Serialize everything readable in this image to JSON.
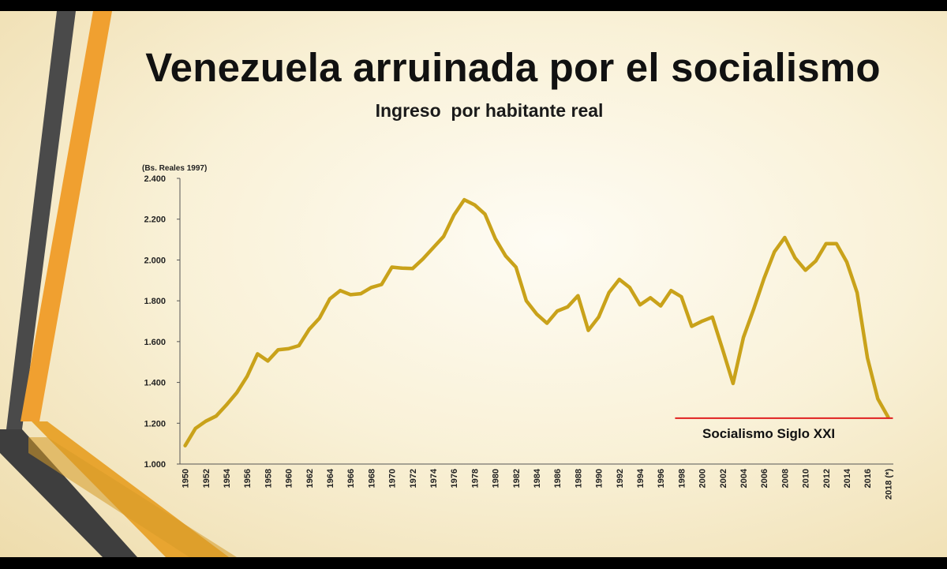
{
  "slide": {
    "title": "Venezuela arruinada por el socialismo",
    "subtitle": "Ingreso  por habitante real"
  },
  "colors": {
    "line": "#c9a21a",
    "annotation_line": "#e02020",
    "stripe_dark": "#4a4a4a",
    "stripe_orange": "#f0a030"
  },
  "chart_data": {
    "type": "line",
    "ylabel": "(Bs. Reales 1997)",
    "ylim": [
      1000,
      2400
    ],
    "yticks": [
      "1.000",
      "1.200",
      "1.400",
      "1.600",
      "1.800",
      "2.000",
      "2.200",
      "2.400"
    ],
    "xticks": [
      "1950",
      "1952",
      "1954",
      "1956",
      "1958",
      "1960",
      "1962",
      "1964",
      "1966",
      "1968",
      "1970",
      "1972",
      "1974",
      "1976",
      "1978",
      "1980",
      "1982",
      "1984",
      "1986",
      "1988",
      "1990",
      "1992",
      "1994",
      "1996",
      "1998",
      "2000",
      "2002",
      "2004",
      "2006",
      "2008",
      "2010",
      "2012",
      "2014",
      "2016",
      "2018 (*)"
    ],
    "grid": false,
    "legend": "none",
    "series": [
      {
        "x": [
          1950,
          1951,
          1952,
          1953,
          1954,
          1955,
          1956,
          1957,
          1958,
          1959,
          1960,
          1961,
          1962,
          1963,
          1964,
          1965,
          1966,
          1967,
          1968,
          1969,
          1970,
          1971,
          1972,
          1973,
          1974,
          1975,
          1976,
          1977,
          1978,
          1979,
          1980,
          1981,
          1982,
          1983,
          1984,
          1985,
          1986,
          1987,
          1988,
          1989,
          1990,
          1991,
          1992,
          1993,
          1994,
          1995,
          1996,
          1997,
          1998,
          1999,
          2000,
          2001,
          2002,
          2003,
          2004,
          2005,
          2006,
          2007,
          2008,
          2009,
          2010,
          2011,
          2012,
          2013,
          2014,
          2015,
          2016,
          2017,
          2018
        ],
        "values": [
          1090,
          1175,
          1210,
          1235,
          1290,
          1350,
          1430,
          1540,
          1505,
          1560,
          1565,
          1580,
          1660,
          1715,
          1810,
          1850,
          1830,
          1835,
          1865,
          1880,
          1965,
          1960,
          1958,
          2005,
          2060,
          2115,
          2220,
          2295,
          2270,
          2225,
          2105,
          2020,
          1965,
          1800,
          1735,
          1690,
          1750,
          1770,
          1825,
          1655,
          1720,
          1840,
          1905,
          1865,
          1780,
          1815,
          1775,
          1850,
          1820,
          1675,
          1700,
          1720,
          1560,
          1395,
          1620,
          1760,
          1910,
          2040,
          2110,
          2010,
          1950,
          1995,
          2080,
          2080,
          1990,
          1840,
          1520,
          1320,
          1230
        ]
      }
    ],
    "annotation": {
      "text": "Socialismo Siglo XXI",
      "x_start": 1998,
      "x_end": 2018,
      "y": 1225
    }
  }
}
